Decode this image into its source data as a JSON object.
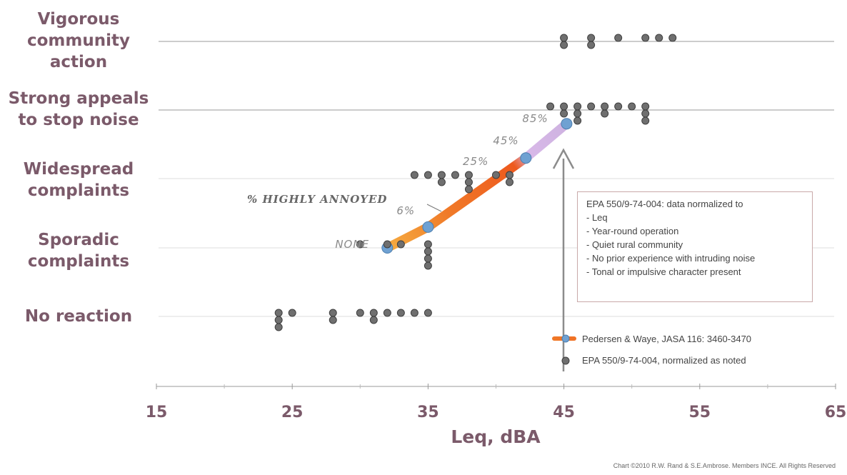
{
  "chart_data": {
    "type": "scatter",
    "xlabel": "Leq, dBA",
    "xlim": [
      15,
      65
    ],
    "xticks": [
      15,
      25,
      35,
      45,
      55,
      65
    ],
    "categories": [
      "No reaction",
      "Sporadic complaints",
      "Widespread complaints",
      "Strong appeals to stop noise",
      "Vigorous community action"
    ],
    "category_labels": [
      [
        "No reaction"
      ],
      [
        "Sporadic",
        "complaints"
      ],
      [
        "Widespread",
        "complaints"
      ],
      [
        "Strong appeals",
        "to stop noise"
      ],
      [
        "Vigorous",
        "community",
        "action"
      ]
    ],
    "series": [
      {
        "name": "EPA 550/9-74-004, normalized as noted",
        "marker": "circle",
        "color": "#6f6f6f",
        "points": [
          [
            24,
            0
          ],
          [
            24,
            0
          ],
          [
            24,
            0
          ],
          [
            25,
            0
          ],
          [
            28,
            0
          ],
          [
            28,
            0
          ],
          [
            30,
            0
          ],
          [
            31,
            0
          ],
          [
            31,
            0
          ],
          [
            32,
            0
          ],
          [
            33,
            0
          ],
          [
            34,
            0
          ],
          [
            35,
            0
          ],
          [
            30,
            1
          ],
          [
            32,
            1
          ],
          [
            33,
            1
          ],
          [
            35,
            1
          ],
          [
            35,
            1
          ],
          [
            35,
            1
          ],
          [
            35,
            1
          ],
          [
            34,
            2
          ],
          [
            35,
            2
          ],
          [
            36,
            2
          ],
          [
            36,
            2
          ],
          [
            37,
            2
          ],
          [
            38,
            2
          ],
          [
            38,
            2
          ],
          [
            38,
            2
          ],
          [
            40,
            2
          ],
          [
            41,
            2
          ],
          [
            41,
            2
          ],
          [
            45,
            3
          ],
          [
            45,
            3
          ],
          [
            46,
            3
          ],
          [
            46,
            3
          ],
          [
            46,
            3
          ],
          [
            47,
            3
          ],
          [
            48,
            3
          ],
          [
            48,
            3
          ],
          [
            49,
            3
          ],
          [
            50,
            3
          ],
          [
            51,
            3
          ],
          [
            51,
            3
          ],
          [
            51,
            3
          ],
          [
            44,
            3
          ],
          [
            45,
            4
          ],
          [
            45,
            4
          ],
          [
            47,
            4
          ],
          [
            47,
            4
          ],
          [
            49,
            4
          ],
          [
            51,
            4
          ],
          [
            52,
            4
          ],
          [
            53,
            4
          ]
        ]
      },
      {
        "name": "Pedersen & Waye, JASA 116: 3460-3470",
        "marker": "line",
        "color": "#f07a28",
        "points": [
          [
            32,
            1
          ],
          [
            35,
            1.3
          ],
          [
            42.2,
            2.3
          ],
          [
            45.2,
            2.8
          ]
        ],
        "point_labels": [
          "NONE",
          "6%",
          "45%",
          "85%"
        ]
      }
    ],
    "annotations": [
      "25%",
      "% HIGHLY ANNOYED"
    ],
    "legend_position": "bottom-right",
    "grid": "horizontal"
  },
  "notes": {
    "title": "EPA 550/9-74-004: data normalized to",
    "items": [
      "- Leq",
      "- Year-round operation",
      "- Quiet rural community",
      "- No prior experience with intruding noise",
      "- Tonal or impulsive character present"
    ]
  },
  "credit": "Chart ©2010 R.W. Rand & S.E.Ambrose. Members INCE. All Rights Reserved",
  "colors": {
    "label": "#7b5a6a",
    "dot": "#6f6f6f",
    "curve_start": "#f6b445",
    "curve_mid": "#f05a1e",
    "curve_end": "#cdb2e0",
    "highlight": "#6fa1d2"
  }
}
